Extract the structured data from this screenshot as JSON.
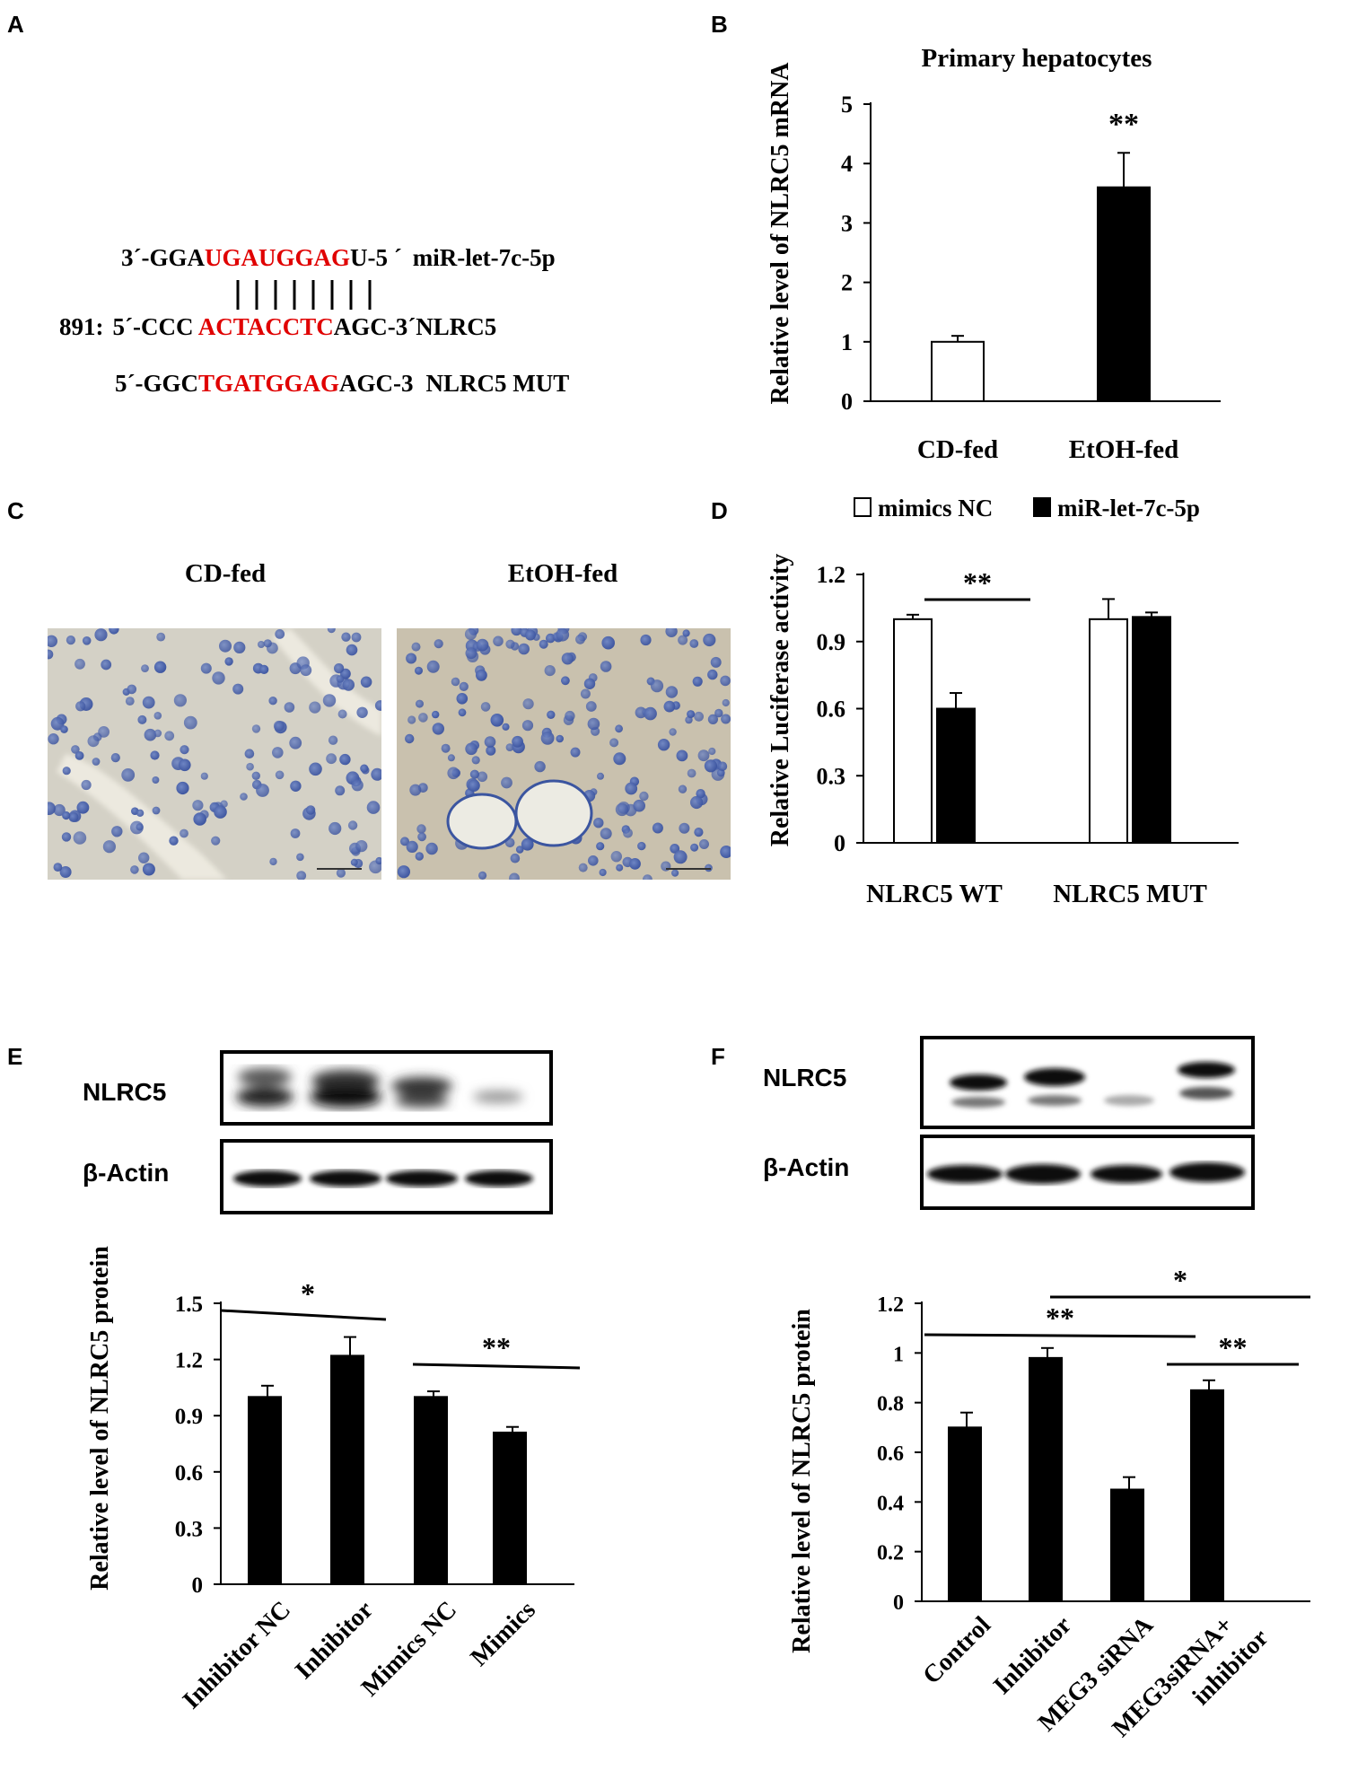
{
  "panel_labels": {
    "a": "A",
    "b": "B",
    "c": "C",
    "d": "D",
    "e": "E",
    "f": "F"
  },
  "sequence": {
    "row1": {
      "prefix": "3´-GGA",
      "highlight": "UGAUGGAG",
      "suffix": "U-5 ´",
      "name": "miR-let-7c-5p"
    },
    "row2": {
      "number": "891:",
      "prefix": "5´-CCC ",
      "highlight": "ACTACCTC",
      "suffix": "AGC-3´",
      "name": "NLRC5"
    },
    "row3": {
      "prefix": "5´-GGC",
      "highlight": "TGATGGAG",
      "suffix": "AGC-3",
      "name": "NLRC5 MUT"
    },
    "highlight_color": "#e00000"
  },
  "micrographs": {
    "left_title": "CD-fed",
    "right_title": "EtOH-fed"
  },
  "blots": {
    "e": {
      "top_label": "NLRC5",
      "bottom_label": "β-Actin"
    },
    "f": {
      "top_label": "NLRC5",
      "bottom_label": "β-Actin"
    }
  },
  "chart_data": [
    {
      "panel": "B",
      "type": "bar",
      "title": "Primary hepatocytes",
      "ylabel": "Relative level of NLRC5  mRNA",
      "categories": [
        "CD-fed",
        "EtOH-fed"
      ],
      "values": [
        1.0,
        3.6
      ],
      "errors": [
        0.1,
        0.58
      ],
      "bar_colors": [
        "#ffffff",
        "#000000"
      ],
      "ylim": [
        0,
        5
      ],
      "yticks": [
        "0",
        "1",
        "2",
        "3",
        "4",
        "5"
      ],
      "significance": [
        {
          "bar": 1,
          "label": "**"
        }
      ]
    },
    {
      "panel": "D",
      "type": "bar",
      "ylabel": "Relative Luciferase activity",
      "categories": [
        "NLRC5 WT",
        "NLRC5 MUT"
      ],
      "series": [
        {
          "name": "mimics NC",
          "color": "#ffffff",
          "values": [
            1.0,
            1.0
          ],
          "errors": [
            0.02,
            0.09
          ]
        },
        {
          "name": "miR-let-7c-5p",
          "color": "#000000",
          "values": [
            0.6,
            1.01
          ],
          "errors": [
            0.07,
            0.02
          ]
        }
      ],
      "ylim": [
        0,
        1.2
      ],
      "yticks": [
        "0",
        "0.3",
        "0.6",
        "0.9",
        "1.2"
      ],
      "legend": "top",
      "significance": [
        {
          "from": 0,
          "to": 1,
          "group": 0,
          "label": "**"
        }
      ]
    },
    {
      "panel": "E",
      "type": "bar",
      "ylabel": "Relative level of NLRC5 protein",
      "categories": [
        "Inhibitor NC",
        "Inhibitor",
        "Mimics NC",
        "Mimics"
      ],
      "values": [
        1.0,
        1.22,
        1.0,
        0.81
      ],
      "errors": [
        0.06,
        0.1,
        0.03,
        0.03
      ],
      "ylim": [
        0,
        1.5
      ],
      "yticks": [
        "0",
        "0.3",
        "0.6",
        "0.9",
        "1.2",
        "1.5"
      ],
      "significance": [
        {
          "from": 0,
          "to": 1,
          "label": "*"
        },
        {
          "from": 2,
          "to": 3,
          "label": "**"
        }
      ]
    },
    {
      "panel": "F",
      "type": "bar",
      "ylabel": "Relative level of NLRC5 protein",
      "categories": [
        "Control",
        "Inhibitor",
        "MEG3 siRNA",
        "MEG3siRNA+\ninhibitor"
      ],
      "values": [
        0.7,
        0.98,
        0.45,
        0.85
      ],
      "errors": [
        0.06,
        0.04,
        0.05,
        0.04
      ],
      "ylim": [
        0,
        1.2
      ],
      "yticks": [
        "0",
        "0.2",
        "0.4",
        "0.6",
        "0.8",
        "1",
        "1.2"
      ],
      "significance": [
        {
          "from": 1,
          "to": 3,
          "label": "*"
        },
        {
          "from": 0,
          "to": 2,
          "label": "**"
        },
        {
          "from": 2,
          "to": 3,
          "label": "**"
        }
      ]
    }
  ]
}
